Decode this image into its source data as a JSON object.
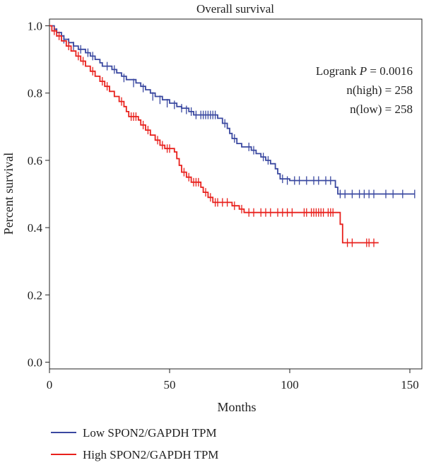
{
  "chart_data": {
    "type": "line",
    "title": "Overall survival",
    "xlabel": "Months",
    "ylabel": "Percent survival",
    "xlim": [
      0,
      155
    ],
    "ylim": [
      -0.02,
      1.02
    ],
    "xticks": [
      0,
      50,
      100,
      150
    ],
    "yticks": [
      0.0,
      0.2,
      0.4,
      0.6,
      0.8,
      1.0
    ],
    "x_tick_labels": [
      "0",
      "50",
      "100",
      "150"
    ],
    "y_tick_labels": [
      "0.0",
      "0.2",
      "0.4",
      "0.6",
      "0.8",
      "1.0"
    ],
    "grid": false,
    "legend_position": "bottom-left",
    "annotation": {
      "logrank_prefix": "Logrank ",
      "logrank_p": "P",
      "logrank_value": " = 0.0016",
      "n_high": "n(high) = 258",
      "n_low": "n(low) = 258"
    },
    "series": [
      {
        "name": "Low SPON2/GAPDH TPM",
        "color": "#3a48a0",
        "steps": [
          [
            0,
            1.0
          ],
          [
            2,
            0.99
          ],
          [
            3,
            0.98
          ],
          [
            5,
            0.97
          ],
          [
            6,
            0.96
          ],
          [
            8,
            0.95
          ],
          [
            10,
            0.94
          ],
          [
            12,
            0.93
          ],
          [
            15,
            0.92
          ],
          [
            17,
            0.91
          ],
          [
            19,
            0.9
          ],
          [
            21,
            0.89
          ],
          [
            22,
            0.88
          ],
          [
            26,
            0.87
          ],
          [
            28,
            0.86
          ],
          [
            30,
            0.85
          ],
          [
            32,
            0.84
          ],
          [
            36,
            0.83
          ],
          [
            38,
            0.82
          ],
          [
            40,
            0.81
          ],
          [
            42,
            0.8
          ],
          [
            44,
            0.79
          ],
          [
            47,
            0.78
          ],
          [
            50,
            0.77
          ],
          [
            53,
            0.76
          ],
          [
            55,
            0.755
          ],
          [
            58,
            0.745
          ],
          [
            60,
            0.735
          ],
          [
            70,
            0.725
          ],
          [
            72,
            0.71
          ],
          [
            74,
            0.695
          ],
          [
            75,
            0.68
          ],
          [
            76,
            0.665
          ],
          [
            78,
            0.65
          ],
          [
            80,
            0.64
          ],
          [
            84,
            0.63
          ],
          [
            86,
            0.62
          ],
          [
            88,
            0.61
          ],
          [
            90,
            0.6
          ],
          [
            92,
            0.59
          ],
          [
            94,
            0.575
          ],
          [
            95,
            0.56
          ],
          [
            96,
            0.545
          ],
          [
            100,
            0.54
          ],
          [
            119,
            0.52
          ],
          [
            120,
            0.5
          ],
          [
            152,
            0.5
          ]
        ],
        "censors": [
          [
            3,
            0.98
          ],
          [
            6,
            0.96
          ],
          [
            8,
            0.95
          ],
          [
            10,
            0.94
          ],
          [
            13,
            0.93
          ],
          [
            16,
            0.92
          ],
          [
            18,
            0.91
          ],
          [
            24,
            0.88
          ],
          [
            27,
            0.87
          ],
          [
            31,
            0.845
          ],
          [
            35,
            0.83
          ],
          [
            39,
            0.815
          ],
          [
            43,
            0.79
          ],
          [
            46,
            0.78
          ],
          [
            49,
            0.77
          ],
          [
            52,
            0.765
          ],
          [
            55,
            0.755
          ],
          [
            57,
            0.75
          ],
          [
            59,
            0.745
          ],
          [
            61,
            0.735
          ],
          [
            63,
            0.735
          ],
          [
            64,
            0.735
          ],
          [
            65,
            0.735
          ],
          [
            66,
            0.735
          ],
          [
            67,
            0.735
          ],
          [
            68,
            0.735
          ],
          [
            69,
            0.735
          ],
          [
            73,
            0.71
          ],
          [
            77,
            0.665
          ],
          [
            83,
            0.64
          ],
          [
            85,
            0.63
          ],
          [
            89,
            0.61
          ],
          [
            91,
            0.6
          ],
          [
            97,
            0.545
          ],
          [
            99,
            0.54
          ],
          [
            102,
            0.54
          ],
          [
            104,
            0.54
          ],
          [
            107,
            0.54
          ],
          [
            110,
            0.54
          ],
          [
            112,
            0.54
          ],
          [
            115,
            0.54
          ],
          [
            117,
            0.54
          ],
          [
            121,
            0.5
          ],
          [
            123,
            0.5
          ],
          [
            126,
            0.5
          ],
          [
            129,
            0.5
          ],
          [
            131,
            0.5
          ],
          [
            133,
            0.5
          ],
          [
            135,
            0.5
          ],
          [
            140,
            0.5
          ],
          [
            143,
            0.5
          ],
          [
            147,
            0.5
          ],
          [
            152,
            0.5
          ]
        ]
      },
      {
        "name": "High SPON2/GAPDH TPM",
        "color": "#e8201c",
        "steps": [
          [
            0,
            1.0
          ],
          [
            1,
            0.985
          ],
          [
            3,
            0.97
          ],
          [
            5,
            0.955
          ],
          [
            7,
            0.94
          ],
          [
            9,
            0.925
          ],
          [
            11,
            0.91
          ],
          [
            13,
            0.895
          ],
          [
            15,
            0.88
          ],
          [
            17,
            0.865
          ],
          [
            19,
            0.85
          ],
          [
            21,
            0.835
          ],
          [
            23,
            0.82
          ],
          [
            25,
            0.805
          ],
          [
            27,
            0.79
          ],
          [
            29,
            0.775
          ],
          [
            31,
            0.76
          ],
          [
            32,
            0.745
          ],
          [
            33,
            0.73
          ],
          [
            37,
            0.72
          ],
          [
            38,
            0.705
          ],
          [
            40,
            0.69
          ],
          [
            42,
            0.675
          ],
          [
            44,
            0.66
          ],
          [
            46,
            0.645
          ],
          [
            48,
            0.635
          ],
          [
            52,
            0.625
          ],
          [
            53,
            0.605
          ],
          [
            54,
            0.585
          ],
          [
            55,
            0.565
          ],
          [
            57,
            0.55
          ],
          [
            59,
            0.535
          ],
          [
            63,
            0.52
          ],
          [
            64,
            0.505
          ],
          [
            66,
            0.49
          ],
          [
            68,
            0.475
          ],
          [
            76,
            0.465
          ],
          [
            79,
            0.455
          ],
          [
            81,
            0.445
          ],
          [
            121,
            0.41
          ],
          [
            122,
            0.355
          ],
          [
            137,
            0.355
          ]
        ],
        "censors": [
          [
            2,
            0.985
          ],
          [
            4,
            0.97
          ],
          [
            8,
            0.94
          ],
          [
            12,
            0.91
          ],
          [
            14,
            0.895
          ],
          [
            18,
            0.865
          ],
          [
            22,
            0.835
          ],
          [
            24,
            0.82
          ],
          [
            30,
            0.775
          ],
          [
            34,
            0.73
          ],
          [
            35,
            0.73
          ],
          [
            36,
            0.73
          ],
          [
            39,
            0.705
          ],
          [
            41,
            0.69
          ],
          [
            45,
            0.66
          ],
          [
            47,
            0.645
          ],
          [
            49,
            0.635
          ],
          [
            50,
            0.635
          ],
          [
            56,
            0.565
          ],
          [
            58,
            0.55
          ],
          [
            60,
            0.535
          ],
          [
            61,
            0.535
          ],
          [
            62,
            0.535
          ],
          [
            65,
            0.505
          ],
          [
            67,
            0.49
          ],
          [
            69,
            0.475
          ],
          [
            70,
            0.475
          ],
          [
            72,
            0.475
          ],
          [
            74,
            0.475
          ],
          [
            77,
            0.465
          ],
          [
            80,
            0.455
          ],
          [
            83,
            0.445
          ],
          [
            85,
            0.445
          ],
          [
            88,
            0.445
          ],
          [
            90,
            0.445
          ],
          [
            92,
            0.445
          ],
          [
            95,
            0.445
          ],
          [
            97,
            0.445
          ],
          [
            99,
            0.445
          ],
          [
            101,
            0.445
          ],
          [
            106,
            0.445
          ],
          [
            107,
            0.445
          ],
          [
            109,
            0.445
          ],
          [
            110,
            0.445
          ],
          [
            111,
            0.445
          ],
          [
            112,
            0.445
          ],
          [
            113,
            0.445
          ],
          [
            114,
            0.445
          ],
          [
            116,
            0.445
          ],
          [
            117,
            0.445
          ],
          [
            118,
            0.445
          ],
          [
            124,
            0.355
          ],
          [
            126,
            0.355
          ],
          [
            132,
            0.355
          ],
          [
            133,
            0.355
          ],
          [
            135,
            0.355
          ]
        ]
      }
    ]
  }
}
